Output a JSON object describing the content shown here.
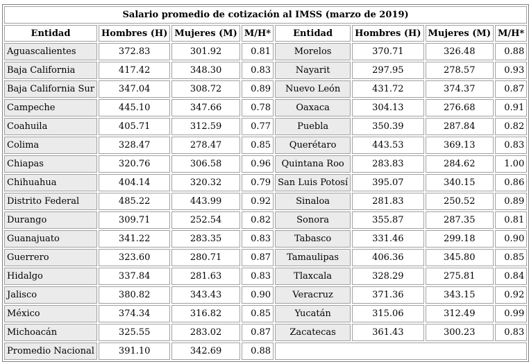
{
  "table": {
    "title": "Salario promedio de cotización al IMSS (marzo de 2019)",
    "headers": [
      "Entidad",
      "Hombres (H)",
      "Mujeres (M)",
      "M/H*",
      "Entidad",
      "Hombres (H)",
      "Mujeres (M)",
      "M/H*"
    ],
    "rows": [
      [
        "Aguascalientes",
        "372.83",
        "301.92",
        "0.81",
        "Morelos",
        "370.71",
        "326.48",
        "0.88"
      ],
      [
        "Baja California",
        "417.42",
        "348.30",
        "0.83",
        "Nayarit",
        "297.95",
        "278.57",
        "0.93"
      ],
      [
        "Baja California Sur",
        "347.04",
        "308.72",
        "0.89",
        "Nuevo León",
        "431.72",
        "374.37",
        "0.87"
      ],
      [
        "Campeche",
        "445.10",
        "347.66",
        "0.78",
        "Oaxaca",
        "304.13",
        "276.68",
        "0.91"
      ],
      [
        "Coahuila",
        "405.71",
        "312.59",
        "0.77",
        "Puebla",
        "350.39",
        "287.84",
        "0.82"
      ],
      [
        "Colima",
        "328.47",
        "278.47",
        "0.85",
        "Querétaro",
        "443.53",
        "369.13",
        "0.83"
      ],
      [
        "Chiapas",
        "320.76",
        "306.58",
        "0.96",
        "Quintana Roo",
        "283.83",
        "284.62",
        "1.00"
      ],
      [
        "Chihuahua",
        "404.14",
        "320.32",
        "0.79",
        "San Luis Potosí",
        "395.07",
        "340.15",
        "0.86"
      ],
      [
        "Distrito Federal",
        "485.22",
        "443.99",
        "0.92",
        "Sinaloa",
        "281.83",
        "250.52",
        "0.89"
      ],
      [
        "Durango",
        "309.71",
        "252.54",
        "0.82",
        "Sonora",
        "355.87",
        "287.35",
        "0.81"
      ],
      [
        "Guanajuato",
        "341.22",
        "283.35",
        "0.83",
        "Tabasco",
        "331.46",
        "299.18",
        "0.90"
      ],
      [
        "Guerrero",
        "323.60",
        "280.71",
        "0.87",
        "Tamaulipas",
        "406.36",
        "345.80",
        "0.85"
      ],
      [
        "Hidalgo",
        "337.84",
        "281.63",
        "0.83",
        "Tlaxcala",
        "328.29",
        "275.81",
        "0.84"
      ],
      [
        "Jalisco",
        "380.82",
        "343.43",
        "0.90",
        "Veracruz",
        "371.36",
        "343.15",
        "0.92"
      ],
      [
        "México",
        "374.34",
        "316.82",
        "0.85",
        "Yucatán",
        "315.06",
        "312.49",
        "0.99"
      ],
      [
        "Michoacán",
        "325.55",
        "283.02",
        "0.87",
        "Zacatecas",
        "361.43",
        "300.23",
        "0.83"
      ],
      [
        "Promedio Nacional",
        "391.10",
        "342.69",
        "0.88"
      ]
    ]
  }
}
